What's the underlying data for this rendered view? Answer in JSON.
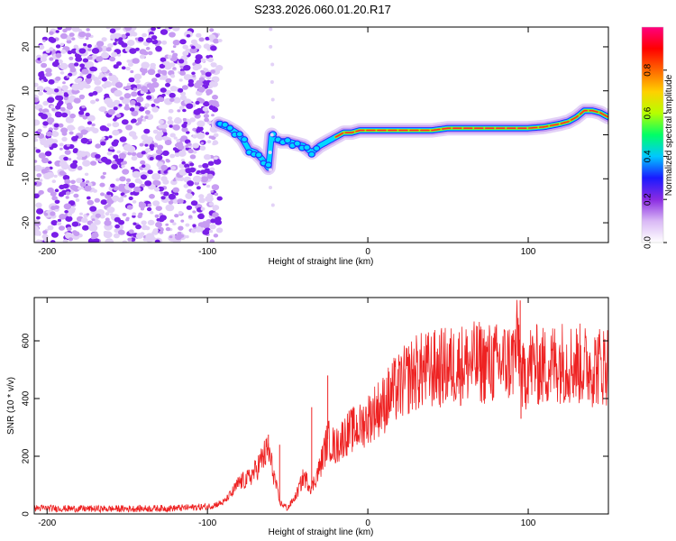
{
  "title": "S233.2026.060.01.20.R17",
  "colors": {
    "axis": "#000000",
    "snr_line": "#ee2222",
    "dense_dot": "#7a1fe8",
    "light_dot": "#c79cf2",
    "faint_dot": "#e3d2f7",
    "ridge_core": "#ff2a2a",
    "ridge_mid": "#9cf000",
    "ridge_outer": "#00d8ff",
    "ridge_edge": "#2233ff"
  },
  "chart_data": [
    {
      "type": "heatmap",
      "name": "spectrogram",
      "title": "S233.2026.060.01.20.R17",
      "xlabel": "Height of straight line (km)",
      "ylabel": "Frequency (Hz)",
      "xlim": [
        -208,
        150
      ],
      "ylim": [
        -24.5,
        24.5
      ],
      "xticks": [
        -200,
        -100,
        0,
        100
      ],
      "yticks": [
        -20,
        -10,
        0,
        10,
        20
      ],
      "noise_region_x": [
        -208,
        -92
      ],
      "ridge": {
        "x": [
          -93,
          -88,
          -82,
          -78,
          -74,
          -70,
          -66,
          -62,
          -60,
          -58,
          -54,
          -50,
          -45,
          -40,
          -35,
          -30,
          -25,
          -20,
          -15,
          -10,
          -5,
          0,
          10,
          20,
          30,
          40,
          50,
          60,
          70,
          80,
          90,
          100,
          110,
          120,
          125,
          130,
          135,
          140,
          145,
          150
        ],
        "y": [
          2.5,
          1.8,
          0.5,
          -1.0,
          -3.5,
          -4.0,
          -5.5,
          -7.5,
          0.0,
          -1.0,
          -1.5,
          -1.5,
          -2.0,
          -2.5,
          -4.0,
          -2.5,
          -1.5,
          -0.5,
          0.5,
          0.5,
          1.0,
          1.0,
          1.0,
          1.0,
          1.0,
          1.0,
          1.5,
          1.5,
          1.5,
          1.5,
          1.5,
          1.5,
          1.8,
          2.5,
          3.0,
          4.0,
          5.5,
          5.5,
          5.0,
          4.0
        ],
        "amplitude": [
          0.35,
          0.3,
          0.25,
          0.25,
          0.2,
          0.2,
          0.2,
          0.15,
          0.3,
          0.35,
          0.4,
          0.4,
          0.35,
          0.3,
          0.3,
          0.35,
          0.55,
          0.7,
          0.75,
          0.8,
          0.85,
          0.85,
          0.9,
          0.95,
          0.95,
          0.9,
          0.9,
          0.9,
          0.9,
          0.85,
          0.85,
          0.8,
          0.8,
          0.8,
          0.85,
          0.85,
          0.9,
          0.95,
          0.9,
          0.85
        ]
      },
      "colorbar": {
        "label": "Normalized spectral amplitude",
        "ticks": [
          0.0,
          0.2,
          0.4,
          0.6,
          0.8
        ],
        "range": [
          0.0,
          1.0
        ],
        "stops": [
          "#ffffff",
          "#d9b8f5",
          "#8a2be2",
          "#1a1aff",
          "#00c8ff",
          "#00ff66",
          "#b6ff00",
          "#ffd000",
          "#ff6600",
          "#ff0000",
          "#ff0080"
        ]
      }
    },
    {
      "type": "line",
      "name": "snr",
      "xlabel": "Height of straight line (km)",
      "ylabel": "SNR (10 * v/v)",
      "xlim": [
        -208,
        150
      ],
      "ylim": [
        0,
        750
      ],
      "xticks": [
        -200,
        -100,
        0,
        100
      ],
      "yticks": [
        0,
        200,
        400,
        600
      ],
      "series": [
        {
          "name": "SNR",
          "x": [
            -208,
            -180,
            -150,
            -120,
            -100,
            -90,
            -85,
            -80,
            -75,
            -70,
            -65,
            -62,
            -58,
            -55,
            -50,
            -45,
            -40,
            -35,
            -30,
            -25,
            -20,
            -15,
            -10,
            -5,
            0,
            5,
            10,
            15,
            20,
            25,
            30,
            40,
            50,
            60,
            70,
            80,
            90,
            94,
            96,
            100,
            110,
            120,
            130,
            140,
            150
          ],
          "y": [
            20,
            18,
            18,
            20,
            25,
            40,
            70,
            110,
            120,
            150,
            200,
            220,
            120,
            40,
            20,
            60,
            130,
            90,
            160,
            260,
            230,
            270,
            290,
            300,
            330,
            360,
            380,
            420,
            440,
            470,
            490,
            500,
            510,
            520,
            525,
            520,
            530,
            600,
            450,
            520,
            510,
            530,
            520,
            510,
            520
          ]
        }
      ],
      "spikes": [
        {
          "x": -62,
          "y": 275
        },
        {
          "x": -55,
          "y": 240
        },
        {
          "x": -35,
          "y": 370
        },
        {
          "x": -25,
          "y": 480
        },
        {
          "x": 95,
          "y": 740
        },
        {
          "x": 95.5,
          "y": 330
        }
      ]
    }
  ]
}
